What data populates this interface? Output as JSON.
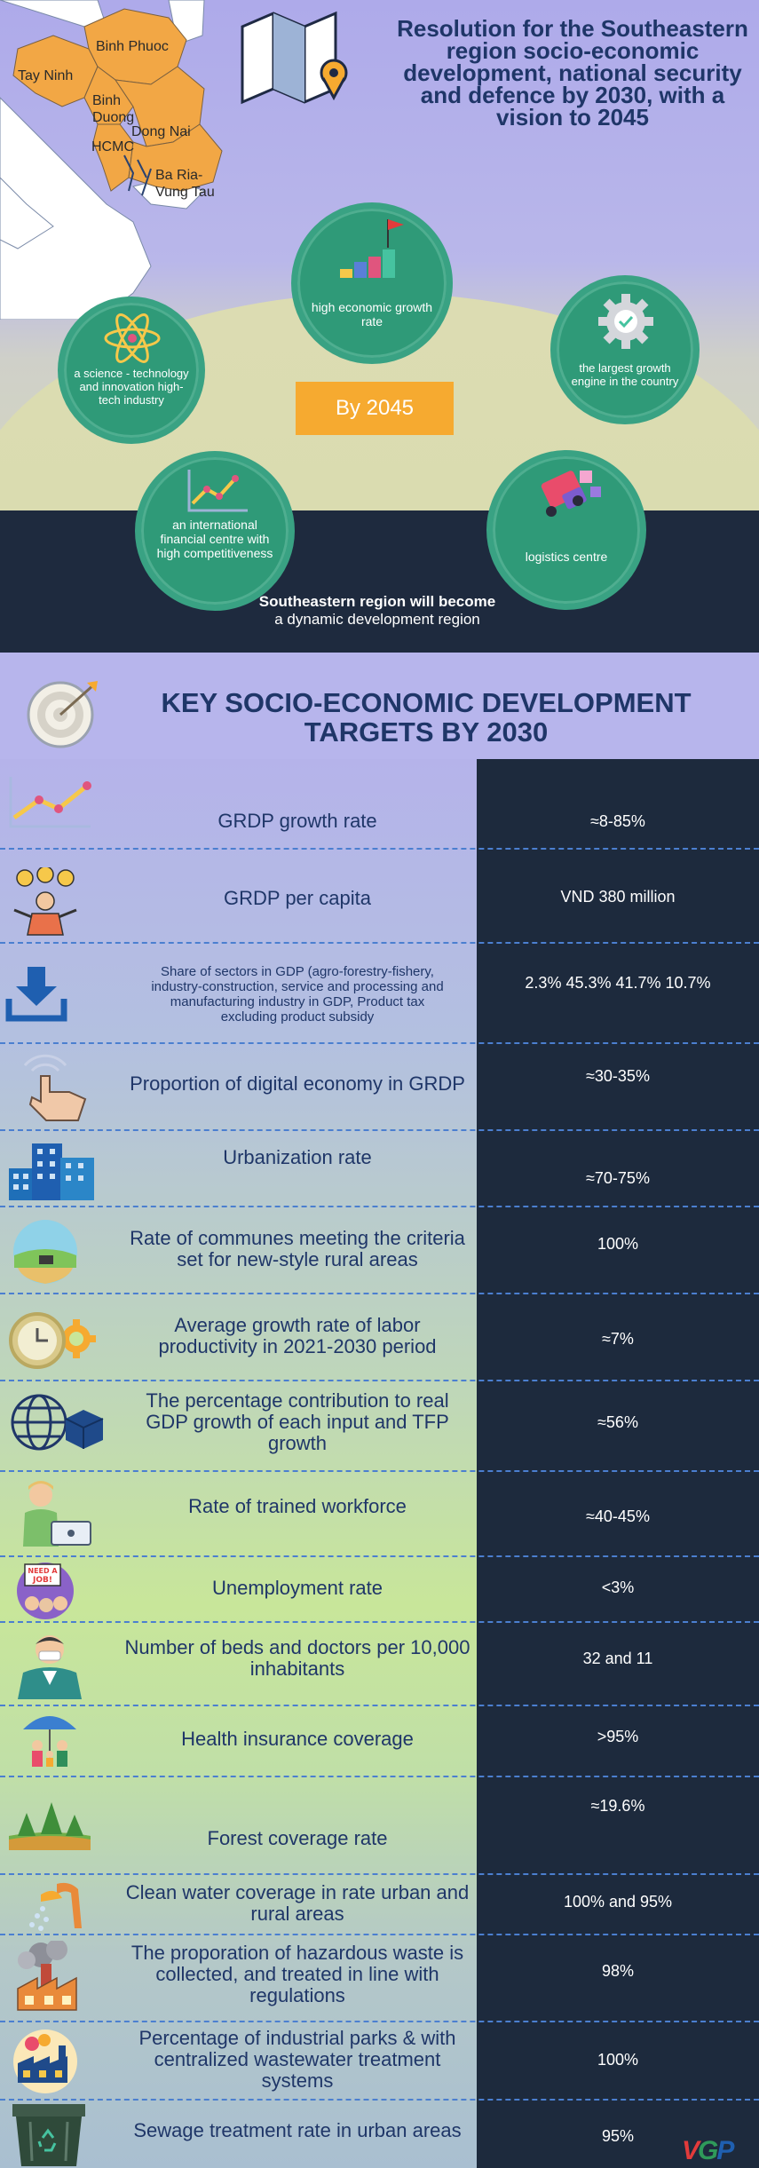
{
  "hero": {
    "title": "Resolution for the Southeastern region socio-economic development, national security and defence by 2030, with a vision to 2045",
    "map_labels": [
      "Tay Ninh",
      "Binh Phuoc",
      "Binh Duong",
      "Dong Nai",
      "HCMC",
      "Ba Ria-Vung Tau"
    ],
    "center_badge": "By 2045",
    "circles": {
      "growth": "high economic growth rate",
      "science": "a science - technology and innovation high-tech industry",
      "engine": "the largest growth engine in the country",
      "finance": "an international financial centre with high competitiveness",
      "logistics": "logistics centre"
    },
    "footer_bold": "Southeastern region will become",
    "footer_rest": "a dynamic development region"
  },
  "key_title": "KEY SOCIO-ECONOMIC DEVELOPMENT TARGETS BY 2030",
  "targets": [
    {
      "label": "GRDP growth rate",
      "value": "≈8-85%",
      "icon": "line-chart-icon"
    },
    {
      "label": "GRDP per capita",
      "value": "VND 380 million",
      "icon": "money-person-icon"
    },
    {
      "label": "Share of sectors in GDP (agro-forestry-fishery, industry-construction, service and processing and manufacturing industry in GDP, Product tax excluding product subsidy",
      "value": "2.3%  45.3%  41.7% 10.7%",
      "icon": "download-icon"
    },
    {
      "label": "Proportion of digital economy in GRDP",
      "value": "≈30-35%",
      "icon": "touch-hand-icon"
    },
    {
      "label": "Urbanization rate",
      "value": "≈70-75%",
      "icon": "buildings-icon"
    },
    {
      "label": "Rate of communes meeting the criteria set for new-style rural areas",
      "value": "100%",
      "icon": "rural-icon"
    },
    {
      "label": "Average growth rate of labor productivity in 2021-2030 period",
      "value": "≈7%",
      "icon": "clock-gear-icon"
    },
    {
      "label": "The percentage contribution to real GDP growth of each input and TFP growth",
      "value": "≈56%",
      "icon": "globe-box-icon"
    },
    {
      "label": "Rate of trained workforce",
      "value": "≈40-45%",
      "icon": "worker-laptop-icon"
    },
    {
      "label": "Unemployment rate",
      "value": "<3%",
      "icon": "need-job-icon"
    },
    {
      "label": "Number of beds and doctors per 10,000 inhabitants",
      "value": "32 and 11",
      "icon": "doctor-icon"
    },
    {
      "label": "Health insurance coverage",
      "value": ">95%",
      "icon": "umbrella-family-icon"
    },
    {
      "label": "Forest coverage rate",
      "value": "≈19.6%",
      "icon": "forest-icon"
    },
    {
      "label": "Clean water coverage in rate urban and rural areas",
      "value": "100% and 95%",
      "icon": "water-tap-icon"
    },
    {
      "label": "The proporation of hazardous waste is collected, and treated in line with regulations",
      "value": "98%",
      "icon": "factory-smoke-icon"
    },
    {
      "label": "Percentage of industrial parks & with centralized wastewater treatment systems",
      "value": "100%",
      "icon": "industrial-park-icon"
    },
    {
      "label": "Sewage treatment rate in urban areas",
      "value": "95%",
      "icon": "recycle-bin-icon"
    }
  ],
  "logo": "VGP",
  "colors": {
    "title_blue": "#1f3668",
    "value_panel": "#1d2a3d",
    "circle_green": "#2f9a78",
    "badge_orange": "#f6aa30"
  }
}
